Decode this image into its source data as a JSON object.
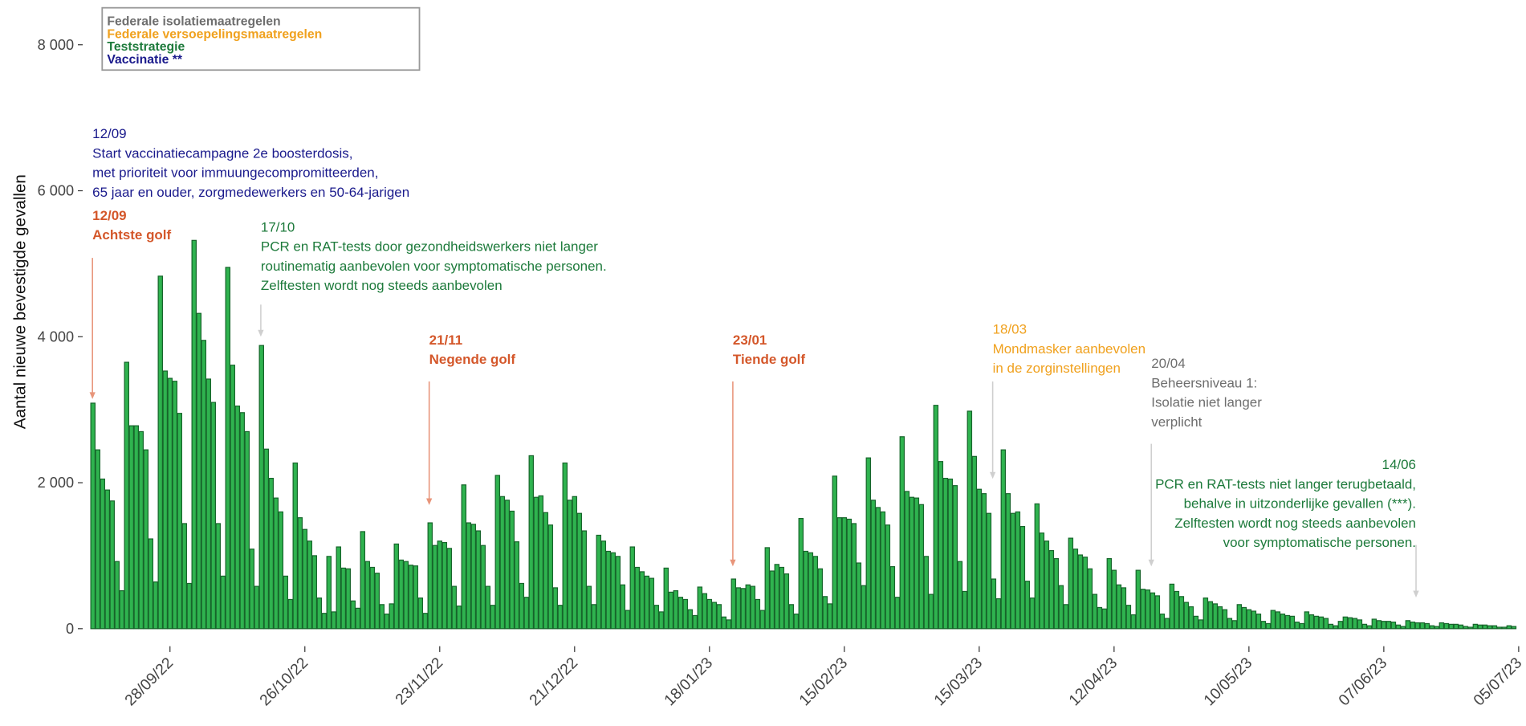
{
  "chart_data": {
    "type": "bar",
    "y_label": "Aantal nieuwe bevestigde gevallen",
    "ylim": [
      0,
      8400
    ],
    "yticks": [
      0,
      {
        "value": 2000,
        "label": "2 000"
      },
      {
        "value": 4000,
        "label": "4 000"
      },
      {
        "value": 6000,
        "label": "6 000"
      },
      {
        "value": 8000,
        "label": "8 000"
      }
    ],
    "xlim": [
      "12/09/22",
      "05/07/23"
    ],
    "xticks": [
      "28/09/22",
      "26/10/22",
      "23/11/22",
      "21/12/22",
      "18/01/23",
      "15/02/23",
      "15/03/23",
      "12/04/23",
      "10/05/23",
      "07/06/23",
      "05/07/23"
    ],
    "color": "#2fb34f",
    "edge_color": "#17652b",
    "legend": [
      {
        "label": "Federale isolatiemaatregelen",
        "color": "#6e6e6e"
      },
      {
        "label": "Federale versoepelingsmaatregelen",
        "color": "#f0a11e"
      },
      {
        "label": "Teststrategie",
        "color": "#1d7a3b"
      },
      {
        "label": "Vaccinatie **",
        "color": "#1a1a8c"
      }
    ],
    "annotations": [
      {
        "date": "12/09",
        "lines": [
          "Start vaccinatiecampagne 2e boosterdosis,",
          "met prioriteit voor immuungecompromitteerden,",
          "65 jaar en ouder, zorgmedewerkers en 50-64-jarigen"
        ],
        "color": "#1a1a8c",
        "bold": false
      },
      {
        "date": "12/09",
        "lines": [
          "Achtste golf"
        ],
        "color": "#d4572a",
        "bold": true
      },
      {
        "date": "17/10",
        "lines": [
          "PCR en RAT-tests door gezondheidswerkers niet langer",
          "routinematig aanbevolen voor symptomatische personen.",
          "Zelftesten wordt nog steeds aanbevolen"
        ],
        "color": "#1d7a3b",
        "bold": false
      },
      {
        "date": "21/11",
        "lines": [
          "Negende golf"
        ],
        "color": "#d4572a",
        "bold": true
      },
      {
        "date": "23/01",
        "lines": [
          "Tiende golf"
        ],
        "color": "#d4572a",
        "bold": true
      },
      {
        "date": "18/03",
        "lines": [
          "Mondmasker aanbevolen",
          "in de zorginstellingen"
        ],
        "color": "#f0a11e",
        "bold": false
      },
      {
        "date": "20/04",
        "lines": [
          "Beheersniveau 1:",
          "Isolatie niet langer",
          "verplicht"
        ],
        "color": "#6e6e6e",
        "bold": false
      },
      {
        "date": "14/06",
        "lines": [
          "PCR en RAT-tests niet langer terugbetaald,",
          "behalve in uitzonderlijke gevallen (***).",
          "Zelftesten wordt nog steeds aanbevolen",
          "voor symptomatische personen."
        ],
        "color": "#1d7a3b",
        "bold": false
      }
    ],
    "x": [
      "12/09/22",
      "13/09/22",
      "14/09/22",
      "15/09/22",
      "16/09/22",
      "17/09/22",
      "18/09/22",
      "19/09/22",
      "20/09/22",
      "21/09/22",
      "22/09/22",
      "23/09/22",
      "24/09/22",
      "25/09/22",
      "26/09/22",
      "27/09/22",
      "28/09/22",
      "29/09/22",
      "30/09/22",
      "01/10/22",
      "02/10/22",
      "03/10/22",
      "04/10/22",
      "05/10/22",
      "06/10/22",
      "07/10/22",
      "08/10/22",
      "09/10/22",
      "10/10/22",
      "11/10/22",
      "12/10/22",
      "13/10/22",
      "14/10/22",
      "15/10/22",
      "16/10/22",
      "17/10/22",
      "18/10/22",
      "19/10/22",
      "20/10/22",
      "21/10/22",
      "22/10/22",
      "23/10/22",
      "24/10/22",
      "25/10/22",
      "26/10/22",
      "27/10/22",
      "28/10/22",
      "29/10/22",
      "30/10/22",
      "31/10/22",
      "01/11/22",
      "02/11/22",
      "03/11/22",
      "04/11/22",
      "05/11/22",
      "06/11/22",
      "07/11/22",
      "08/11/22",
      "09/11/22",
      "10/11/22",
      "11/11/22",
      "12/11/22",
      "13/11/22",
      "14/11/22",
      "15/11/22",
      "16/11/22",
      "17/11/22",
      "18/11/22",
      "19/11/22",
      "20/11/22",
      "21/11/22",
      "22/11/22",
      "23/11/22",
      "24/11/22",
      "25/11/22",
      "26/11/22",
      "27/11/22",
      "28/11/22",
      "29/11/22",
      "30/11/22",
      "01/12/22",
      "02/12/22",
      "03/12/22",
      "04/12/22",
      "05/12/22",
      "06/12/22",
      "07/12/22",
      "08/12/22",
      "09/12/22",
      "10/12/22",
      "11/12/22",
      "12/12/22",
      "13/12/22",
      "14/12/22",
      "15/12/22",
      "16/12/22",
      "17/12/22",
      "18/12/22",
      "19/12/22",
      "20/12/22",
      "21/12/22",
      "22/12/22",
      "23/12/22",
      "24/12/22",
      "25/12/22",
      "26/12/22",
      "27/12/22",
      "28/12/22",
      "29/12/22",
      "30/12/22",
      "31/12/22",
      "01/01/23",
      "02/01/23",
      "03/01/23",
      "04/01/23",
      "05/01/23",
      "06/01/23",
      "07/01/23",
      "08/01/23",
      "09/01/23",
      "10/01/23",
      "11/01/23",
      "12/01/23",
      "13/01/23",
      "14/01/23",
      "15/01/23",
      "16/01/23",
      "17/01/23",
      "18/01/23",
      "19/01/23",
      "20/01/23",
      "21/01/23",
      "22/01/23",
      "23/01/23",
      "24/01/23",
      "25/01/23",
      "26/01/23",
      "27/01/23",
      "28/01/23",
      "29/01/23",
      "30/01/23",
      "31/01/23",
      "01/02/23",
      "02/02/23",
      "03/02/23",
      "04/02/23",
      "05/02/23",
      "06/02/23",
      "07/02/23",
      "08/02/23",
      "09/02/23",
      "10/02/23",
      "11/02/23",
      "12/02/23",
      "13/02/23",
      "14/02/23",
      "15/02/23",
      "16/02/23",
      "17/02/23",
      "18/02/23",
      "19/02/23",
      "20/02/23",
      "21/02/23",
      "22/02/23",
      "23/02/23",
      "24/02/23",
      "25/02/23",
      "26/02/23",
      "27/02/23",
      "28/02/23",
      "01/03/23",
      "02/03/23",
      "03/03/23",
      "04/03/23",
      "05/03/23",
      "06/03/23",
      "07/03/23",
      "08/03/23",
      "09/03/23",
      "10/03/23",
      "11/03/23",
      "12/03/23",
      "13/03/23",
      "14/03/23",
      "15/03/23",
      "16/03/23",
      "17/03/23",
      "18/03/23",
      "19/03/23",
      "20/03/23",
      "21/03/23",
      "22/03/23",
      "23/03/23",
      "24/03/23",
      "25/03/23",
      "26/03/23",
      "27/03/23",
      "28/03/23",
      "29/03/23",
      "30/03/23",
      "31/03/23",
      "01/04/23",
      "02/04/23",
      "03/04/23",
      "04/04/23",
      "05/04/23",
      "06/04/23",
      "07/04/23",
      "08/04/23",
      "09/04/23",
      "10/04/23",
      "11/04/23",
      "12/04/23",
      "13/04/23",
      "14/04/23",
      "15/04/23",
      "16/04/23",
      "17/04/23",
      "18/04/23",
      "19/04/23",
      "20/04/23",
      "21/04/23",
      "22/04/23",
      "23/04/23",
      "24/04/23",
      "25/04/23",
      "26/04/23",
      "27/04/23",
      "28/04/23",
      "29/04/23",
      "30/04/23",
      "01/05/23",
      "02/05/23",
      "03/05/23",
      "04/05/23",
      "05/05/23",
      "06/05/23",
      "07/05/23",
      "08/05/23",
      "09/05/23",
      "10/05/23",
      "11/05/23",
      "12/05/23",
      "13/05/23",
      "14/05/23",
      "15/05/23",
      "16/05/23",
      "17/05/23",
      "18/05/23",
      "19/05/23",
      "20/05/23",
      "21/05/23",
      "22/05/23",
      "23/05/23",
      "24/05/23",
      "25/05/23",
      "26/05/23",
      "27/05/23",
      "28/05/23",
      "29/05/23",
      "30/05/23",
      "31/05/23",
      "01/06/23",
      "02/06/23",
      "03/06/23",
      "04/06/23",
      "05/06/23",
      "06/06/23",
      "07/06/23",
      "08/06/23",
      "09/06/23",
      "10/06/23",
      "11/06/23",
      "12/06/23",
      "13/06/23",
      "14/06/23",
      "15/06/23",
      "16/06/23",
      "17/06/23",
      "18/06/23",
      "19/06/23",
      "20/06/23",
      "21/06/23",
      "22/06/23",
      "23/06/23",
      "24/06/23",
      "25/06/23",
      "26/06/23",
      "27/06/23",
      "28/06/23",
      "29/06/23",
      "30/06/23",
      "01/07/23",
      "02/07/23",
      "03/07/23",
      "04/07/23"
    ],
    "values": [
      3090,
      2450,
      2050,
      1900,
      1750,
      920,
      520,
      3650,
      2780,
      2780,
      2700,
      2450,
      1230,
      640,
      4830,
      3530,
      3430,
      3390,
      2950,
      1440,
      620,
      5320,
      4320,
      3950,
      3420,
      3100,
      1440,
      720,
      4950,
      3610,
      3050,
      2960,
      2700,
      1090,
      580,
      3880,
      2460,
      2060,
      1790,
      1600,
      720,
      400,
      2270,
      1520,
      1360,
      1200,
      1000,
      420,
      210,
      990,
      230,
      1120,
      830,
      820,
      380,
      280,
      1330,
      920,
      840,
      760,
      330,
      200,
      340,
      1160,
      940,
      920,
      870,
      860,
      420,
      210,
      1450,
      1140,
      1200,
      1180,
      1100,
      580,
      310,
      1970,
      1450,
      1430,
      1340,
      1140,
      580,
      320,
      2100,
      1810,
      1760,
      1610,
      1190,
      620,
      430,
      2370,
      1800,
      1820,
      1590,
      1420,
      560,
      320,
      2270,
      1760,
      1810,
      1580,
      1340,
      580,
      330,
      1280,
      1200,
      1060,
      1040,
      990,
      600,
      250,
      1120,
      840,
      780,
      720,
      690,
      320,
      230,
      830,
      500,
      520,
      430,
      400,
      260,
      180,
      570,
      480,
      400,
      360,
      330,
      160,
      120,
      680,
      560,
      550,
      600,
      580,
      400,
      250,
      1110,
      790,
      880,
      840,
      750,
      330,
      200,
      1510,
      1060,
      1040,
      990,
      820,
      440,
      340,
      2090,
      1520,
      1520,
      1500,
      1440,
      900,
      590,
      2340,
      1760,
      1660,
      1600,
      1420,
      850,
      430,
      2630,
      1880,
      1800,
      1790,
      1700,
      990,
      470,
      3060,
      2290,
      2060,
      2050,
      1960,
      920,
      510,
      2980,
      2360,
      1910,
      1850,
      1580,
      680,
      410,
      2450,
      1850,
      1580,
      1600,
      1400,
      650,
      420,
      1710,
      1310,
      1200,
      1070,
      960,
      590,
      330,
      1240,
      1090,
      1010,
      980,
      820,
      470,
      290,
      270,
      960,
      800,
      600,
      560,
      320,
      190,
      800,
      540,
      530,
      490,
      450,
      200,
      140,
      610,
      510,
      440,
      360,
      300,
      170,
      120,
      420,
      370,
      340,
      300,
      260,
      140,
      110,
      330,
      290,
      260,
      240,
      200,
      100,
      70,
      250,
      230,
      200,
      180,
      170,
      90,
      70,
      230,
      190,
      170,
      160,
      140,
      60,
      40,
      100,
      160,
      150,
      140,
      120,
      60,
      40,
      130,
      110,
      100,
      100,
      90,
      50,
      30,
      110,
      90,
      80,
      80,
      70,
      40,
      30,
      80,
      70,
      60,
      60,
      50,
      30,
      20,
      60,
      50,
      50,
      40,
      40,
      20,
      20,
      40,
      30
    ]
  }
}
